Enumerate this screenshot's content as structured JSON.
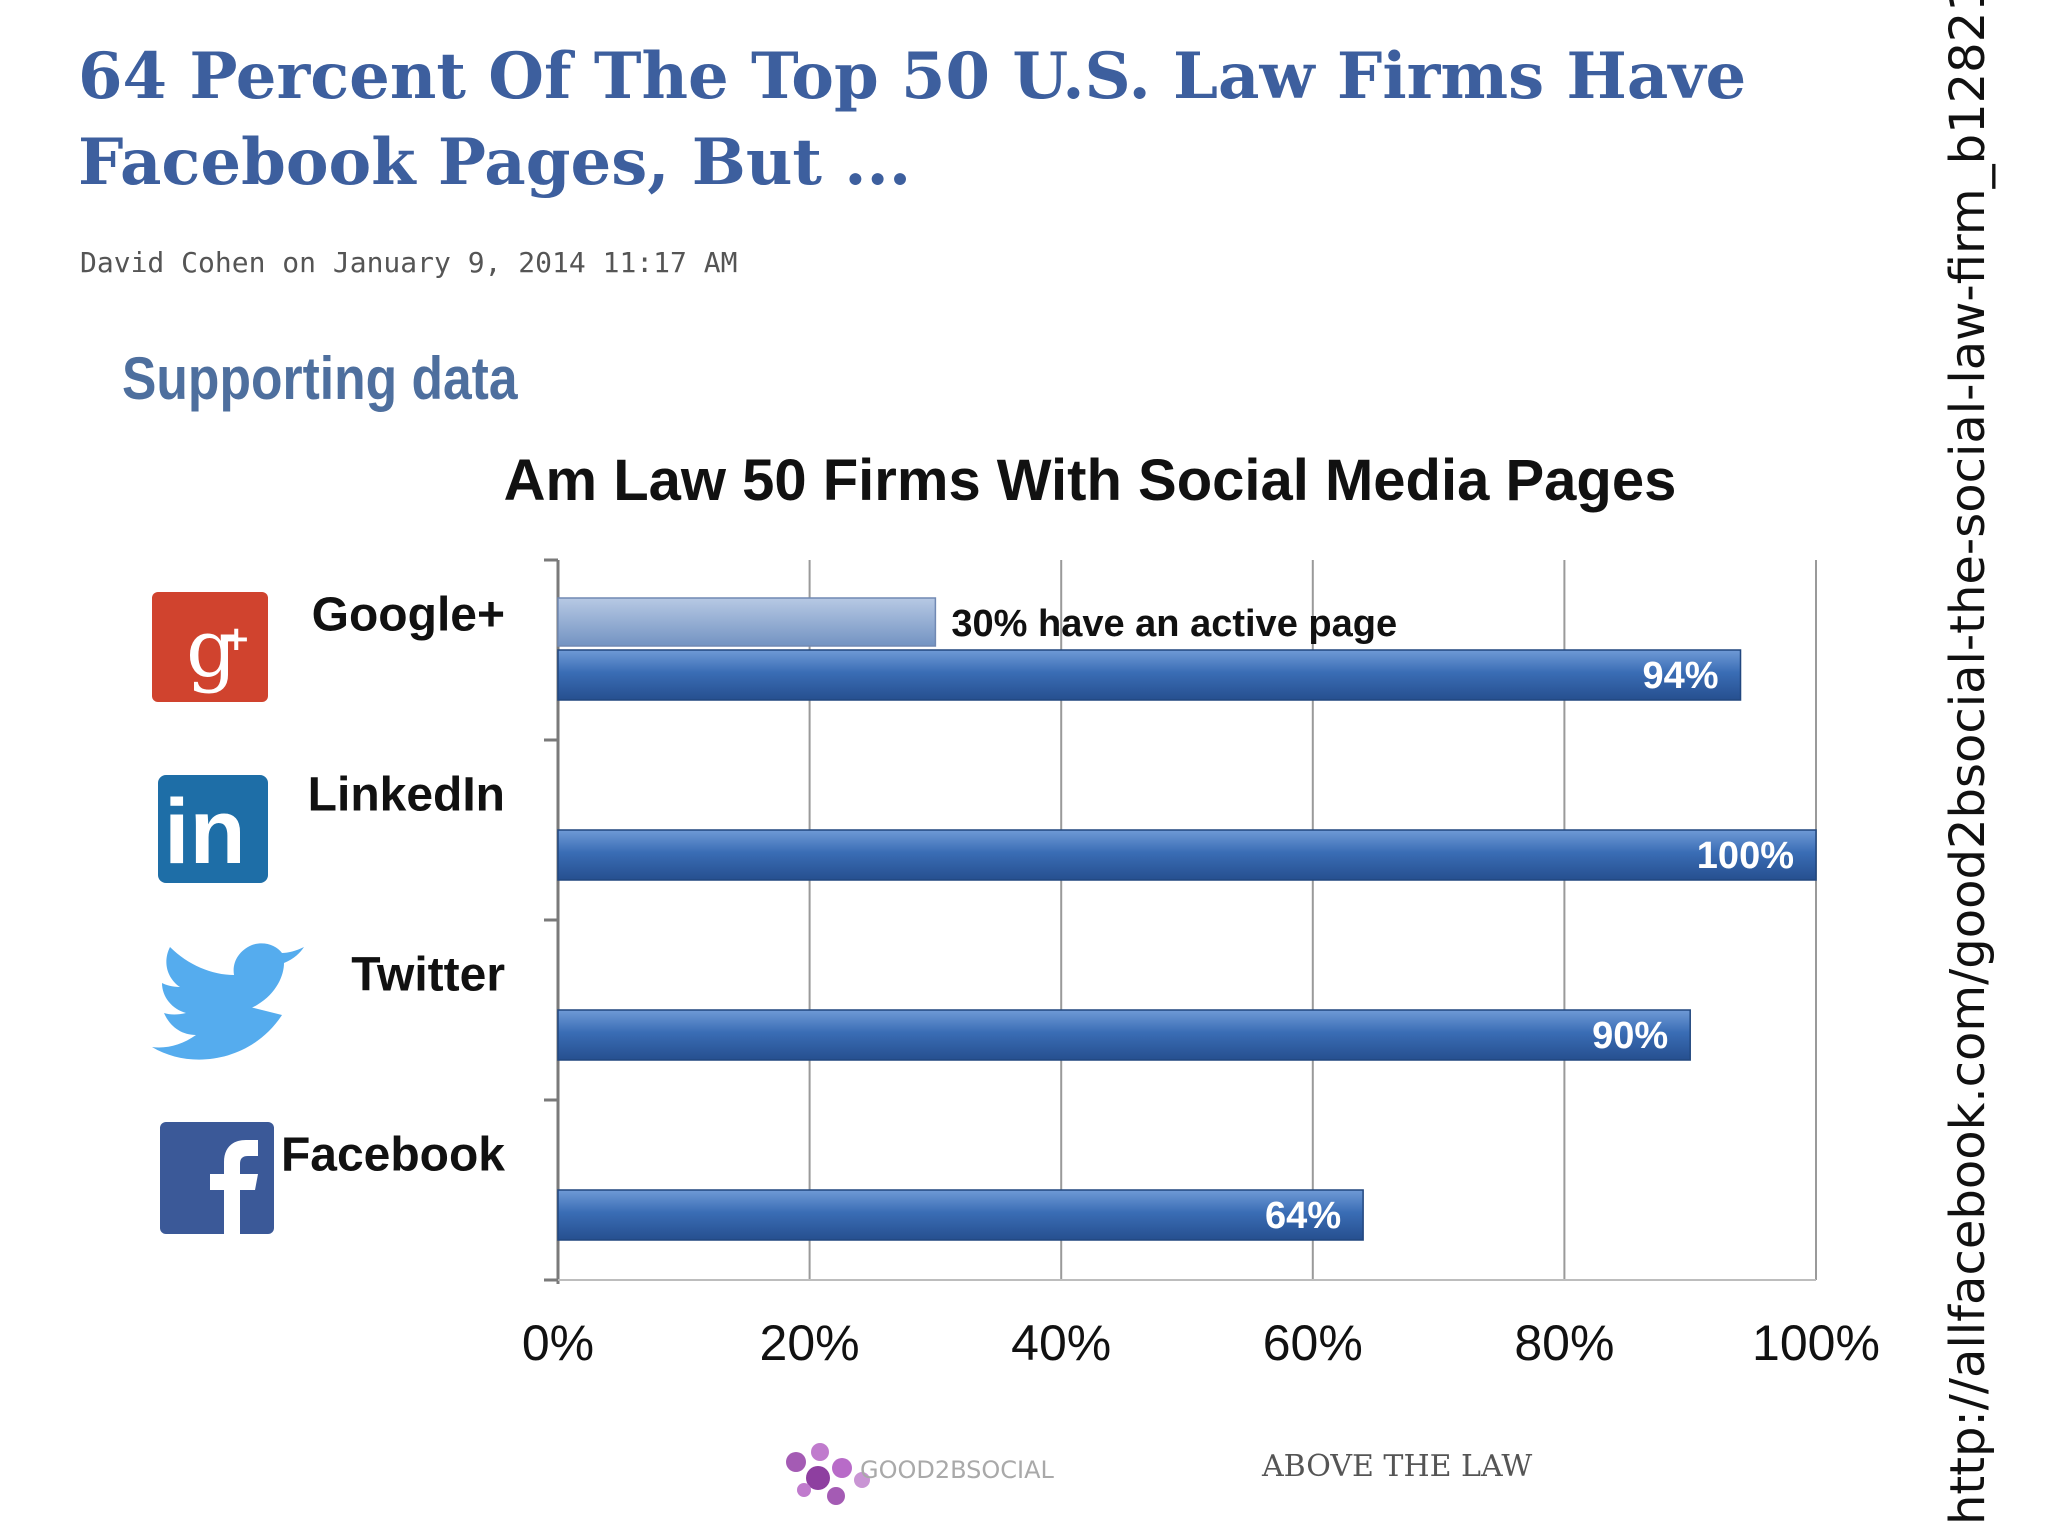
{
  "article": {
    "title": "64 Percent Of The Top 50 U.S. Law Firms Have Facebook Pages, But ...",
    "byline": "David Cohen on January 9, 2014 11:17 AM",
    "section": "Supporting data"
  },
  "source_url": "http://allfacebook.com/good2bsocial-the-social-law-firm_b128216",
  "colors": {
    "bar": "#3a6db5",
    "bar_light": "#8aa6cf",
    "headline": "#3d5f9e"
  },
  "chart_data": {
    "type": "bar",
    "orientation": "horizontal",
    "title": "Am Law 50 Firms With Social Media Pages",
    "categories": [
      "Google+",
      "LinkedIn",
      "Twitter",
      "Facebook"
    ],
    "category_icons": [
      "google-plus-icon",
      "linkedin-icon",
      "twitter-bird-icon",
      "facebook-icon"
    ],
    "series": [
      {
        "values": [
          94,
          100,
          90,
          64
        ],
        "labels": [
          "94%",
          "100%",
          "90%",
          "64%"
        ]
      }
    ],
    "annotation": {
      "category": "Google+",
      "value": 30,
      "text": "30% have an active page"
    },
    "xlim": [
      0,
      100
    ],
    "xticks": [
      "0%",
      "20%",
      "40%",
      "60%",
      "80%",
      "100%"
    ],
    "grid": true,
    "logos": [
      "GOOD2BSOCIAL",
      "ABOVE THE LAW"
    ]
  }
}
